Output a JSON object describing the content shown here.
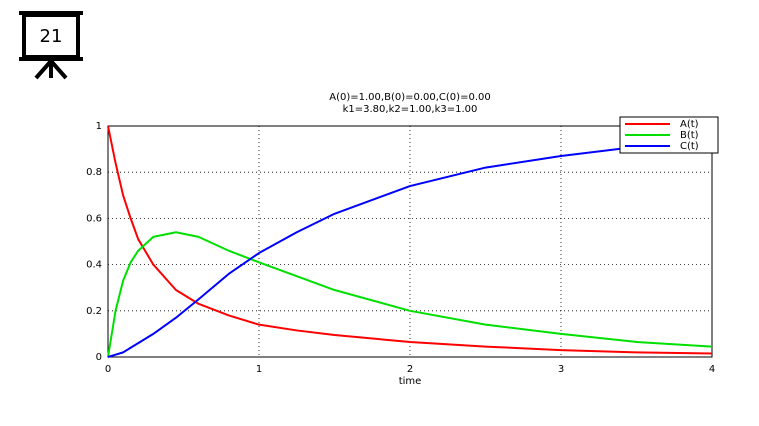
{
  "slide_icon": {
    "label": "21"
  },
  "chart_data": {
    "type": "line",
    "title": "A(0)=1.00,B(0)=0.00,C(0)=0.00",
    "subtitle": "k1=3.80,k2=1.00,k3=1.00",
    "x_label": "time",
    "x": [
      0,
      0.05,
      0.1,
      0.15,
      0.2,
      0.3,
      0.45,
      0.6,
      0.8,
      1,
      1.25,
      1.5,
      2,
      2.5,
      3,
      3.5,
      4
    ],
    "series": [
      {
        "name": "A(t)",
        "color": "#ff0000",
        "values": [
          1,
          0.84,
          0.7,
          0.6,
          0.51,
          0.4,
          0.29,
          0.23,
          0.18,
          0.14,
          0.115,
          0.095,
          0.065,
          0.045,
          0.03,
          0.02,
          0.015
        ]
      },
      {
        "name": "B(t)",
        "color": "#00e000",
        "values": [
          0,
          0.2,
          0.33,
          0.41,
          0.46,
          0.52,
          0.54,
          0.52,
          0.46,
          0.41,
          0.35,
          0.29,
          0.2,
          0.14,
          0.1,
          0.065,
          0.045
        ]
      },
      {
        "name": "C(t)",
        "color": "#0000ff",
        "values": [
          0,
          0.01,
          0.02,
          0.04,
          0.06,
          0.1,
          0.17,
          0.25,
          0.36,
          0.45,
          0.54,
          0.62,
          0.74,
          0.82,
          0.87,
          0.91,
          0.94
        ]
      }
    ],
    "xlim": [
      0,
      4
    ],
    "xticks": [
      0,
      1,
      2,
      3,
      4
    ],
    "ylim": [
      0,
      1
    ],
    "yticks": [
      0,
      0.2,
      0.4,
      0.6,
      0.8,
      1
    ],
    "grid": true,
    "legend": "upper right"
  }
}
